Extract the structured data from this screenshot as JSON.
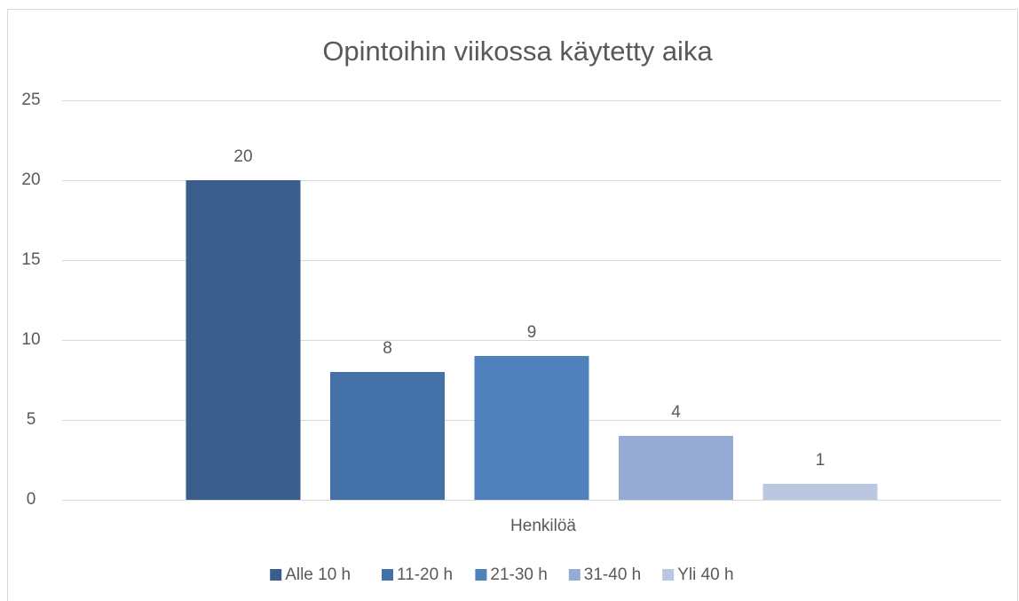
{
  "chart_data": {
    "type": "bar",
    "title": "Opintoihin viikossa käytetty aika",
    "categories": [
      "Henkilöä"
    ],
    "series": [
      {
        "name": "Alle 10 h",
        "color": "#3a5e8c",
        "values": [
          20
        ]
      },
      {
        "name": "11-20 h",
        "color": "#4472a8",
        "values": [
          8
        ]
      },
      {
        "name": "21-30 h",
        "color": "#4f81bd",
        "values": [
          9
        ]
      },
      {
        "name": "31-40 h",
        "color": "#95abd3",
        "values": [
          4
        ]
      },
      {
        "name": "Yli 40 h",
        "color": "#b9c7e1",
        "values": [
          1
        ]
      }
    ],
    "ylim": [
      0,
      25
    ],
    "yticks": [
      0,
      5,
      10,
      15,
      20,
      25
    ],
    "grid": true,
    "legend": "bottom"
  }
}
